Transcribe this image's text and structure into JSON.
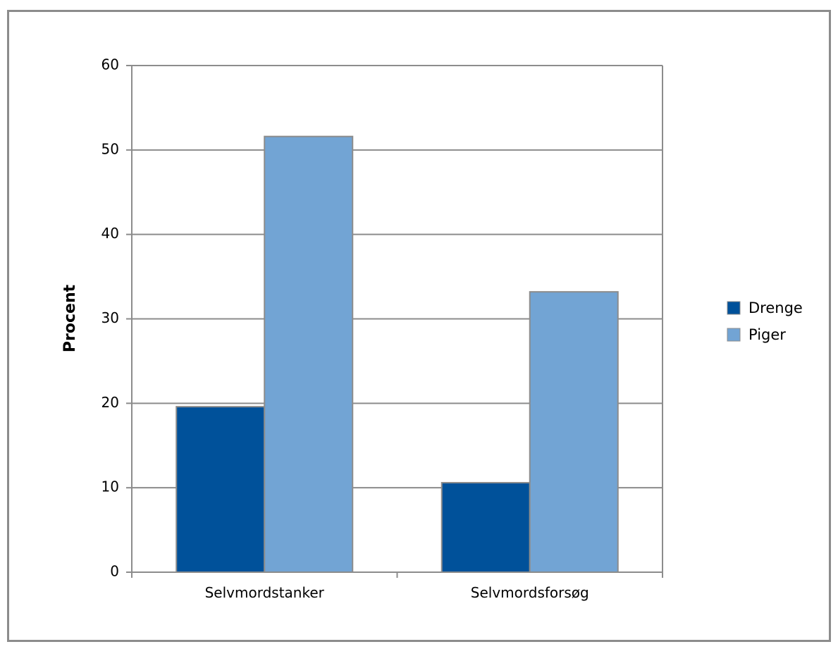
{
  "chart_data": {
    "type": "bar",
    "title": "",
    "xlabel": "",
    "ylabel": "Procent",
    "ylim": [
      0,
      60
    ],
    "yticks": [
      0,
      10,
      20,
      30,
      40,
      50,
      60
    ],
    "categories": [
      "Selvmordstanker",
      "Selvmordsforsøg"
    ],
    "series": [
      {
        "name": "Drenge",
        "color": "#00519a",
        "values": [
          19.6,
          10.6
        ]
      },
      {
        "name": "Piger",
        "color": "#72a4d4",
        "values": [
          51.6,
          33.2
        ]
      }
    ],
    "grid": true,
    "legend_position": "right"
  }
}
